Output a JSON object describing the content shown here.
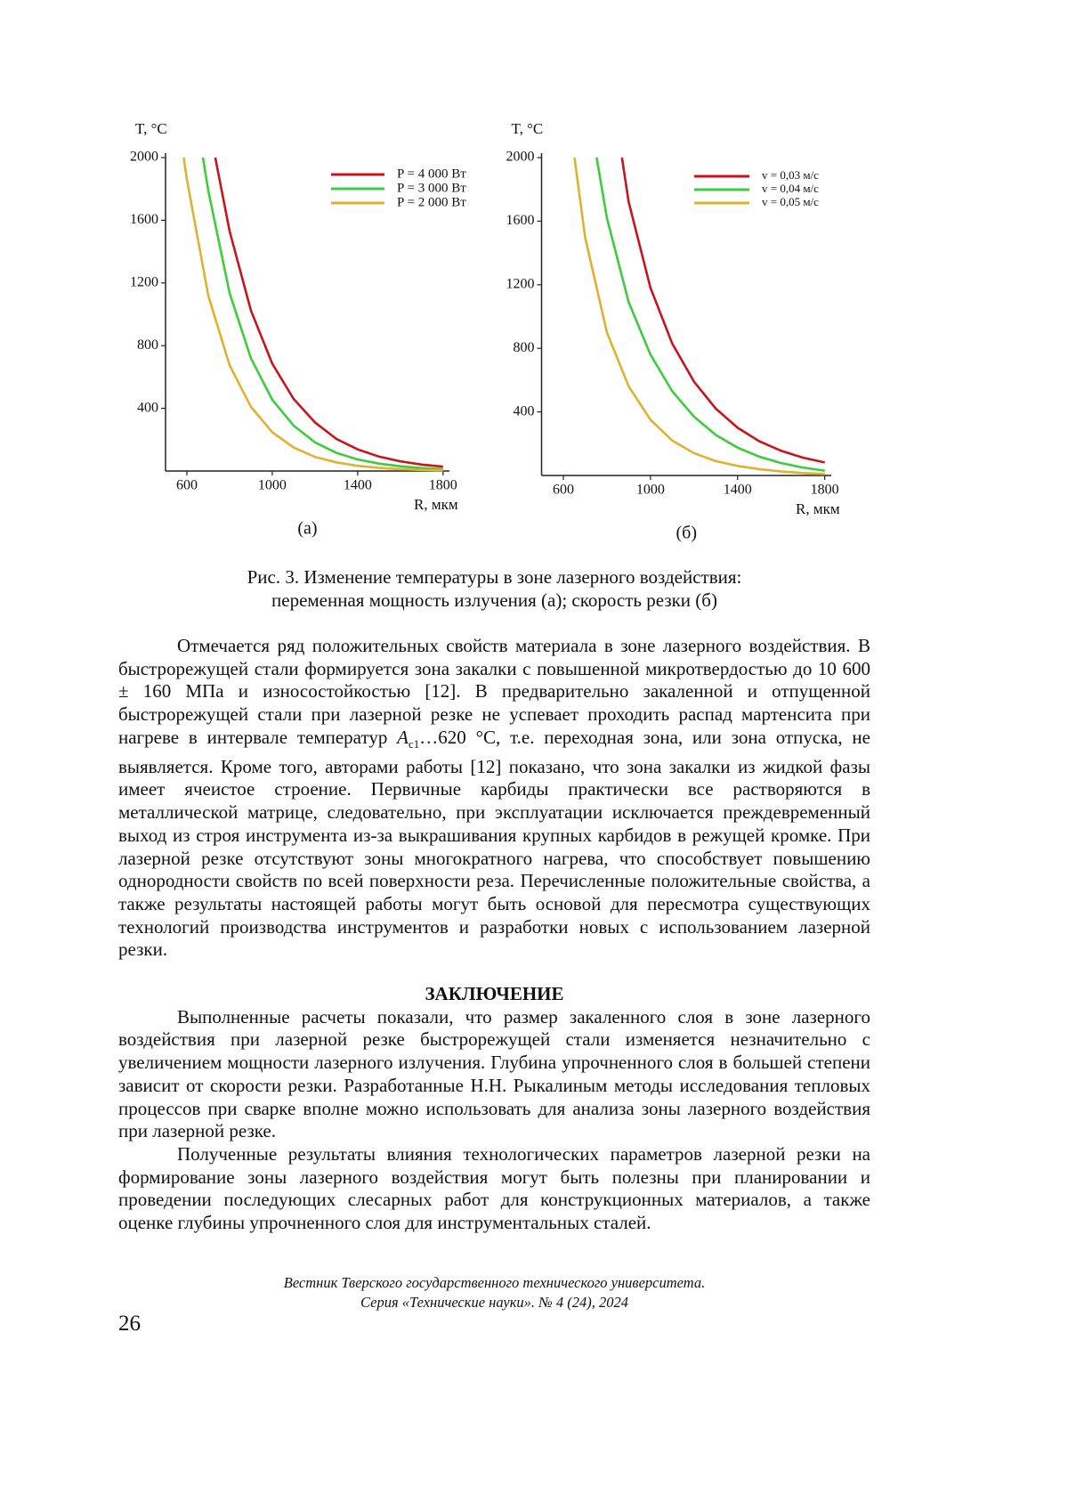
{
  "chart_data": [
    {
      "type": "line",
      "panel_label": "(а)",
      "ylabel": "T, °C",
      "xlabel": "R, мкм",
      "xlim": [
        500,
        1830
      ],
      "ylim": [
        0,
        2000
      ],
      "xticks": [
        600,
        1000,
        1400,
        1800
      ],
      "yticks": [
        400,
        800,
        1200,
        1600,
        2000
      ],
      "legend": "upper right",
      "series": [
        {
          "name": "P = 4 000 Вт",
          "color": "#c8141e",
          "x": [
            733,
            800,
            900,
            1000,
            1100,
            1200,
            1300,
            1400,
            1500,
            1600,
            1700,
            1800
          ],
          "values": [
            2000,
            1530,
            1025,
            685,
            460,
            310,
            205,
            138,
            92,
            62,
            41,
            28
          ]
        },
        {
          "name": "P = 3 000 Вт",
          "color": "#3ccc3c",
          "x": [
            675,
            700,
            800,
            900,
            1000,
            1100,
            1200,
            1300,
            1400,
            1500,
            1600,
            1700,
            1800
          ],
          "values": [
            2000,
            1790,
            1135,
            720,
            455,
            290,
            183,
            116,
            74,
            47,
            30,
            19,
            12
          ]
        },
        {
          "name": "P = 2 000 Вт",
          "color": "#e0b030",
          "x": [
            585,
            600,
            700,
            800,
            900,
            1000,
            1100,
            1200,
            1300,
            1400,
            1500,
            1600,
            1700,
            1800
          ],
          "values": [
            2000,
            1860,
            1120,
            675,
            410,
            248,
            150,
            90,
            55,
            33,
            20,
            12,
            7,
            4
          ]
        }
      ]
    },
    {
      "type": "line",
      "panel_label": "(б)",
      "ylabel": "T, °C",
      "xlabel": "R, мкм",
      "xlim": [
        500,
        1830
      ],
      "ylim": [
        0,
        2000
      ],
      "xticks": [
        600,
        1000,
        1400,
        1800
      ],
      "yticks": [
        400,
        800,
        1200,
        1600,
        2000
      ],
      "legend": "upper right",
      "series": [
        {
          "name": "v = 0,03 м/с",
          "color": "#c8141e",
          "x": [
            869,
            900,
            1000,
            1100,
            1200,
            1300,
            1400,
            1500,
            1600,
            1700,
            1800
          ],
          "values": [
            2000,
            1720,
            1180,
            830,
            590,
            420,
            300,
            215,
            155,
            112,
            82
          ]
        },
        {
          "name": "v = 0,04 м/с",
          "color": "#3ccc3c",
          "x": [
            753,
            800,
            900,
            1000,
            1100,
            1200,
            1300,
            1400,
            1500,
            1600,
            1700,
            1800
          ],
          "values": [
            2000,
            1620,
            1090,
            760,
            530,
            370,
            255,
            175,
            118,
            78,
            50,
            30
          ]
        },
        {
          "name": "v = 0,05 м/с",
          "color": "#e0b030",
          "x": [
            651,
            700,
            800,
            900,
            1000,
            1100,
            1200,
            1300,
            1400,
            1500,
            1600,
            1700,
            1800
          ],
          "values": [
            2000,
            1500,
            900,
            560,
            350,
            220,
            140,
            90,
            60,
            40,
            25,
            15,
            9
          ]
        }
      ]
    }
  ],
  "figure_caption": [
    "Рис. 3. Изменение температуры в зоне лазерного воздействия:",
    "переменная мощность излучения (а); скорость резки (б)"
  ],
  "body": {
    "paragraph_1": {
      "before": "Отмечается ряд положительных свойств материала в зоне лазерного воздействия. В быстрорежущей стали формируется зона закалки с повышенной микротвердостью до 10 600 ± 160 МПа и износостойкостью [12]. В предварительно закаленной и отпущенной быстрорежущей стали при лазерной резке не успевает проходить распад мартенсита при нагреве в интервале температур ",
      "symbol": "A",
      "subscript": "c1",
      "after": "…620 °C, т.е. переходная зона, или зона отпуска, не выявляется. Кроме того, авторами работы [12] показано, что зона закалки из жидкой фазы имеет ячеистое строение. Первичные карбиды практически все растворяются в металлической матрице, следовательно, при эксплуатации исключается преждевременный выход из строя инструмента из-за выкрашивания крупных карбидов в режущей кромке. При лазерной резке отсутствуют зоны многократного нагрева, что способствует повышению однородности свойств по всей поверхности реза. Перечисленные положительные свойства, а также результаты настоящей работы могут быть основой для пересмотра существующих технологий производства инструментов и разработки новых с использованием лазерной резки."
    },
    "heading": "ЗАКЛЮЧЕНИЕ",
    "paragraph_2": "Выполненные расчеты показали, что размер закаленного слоя в зоне лазерного воздействия при лазерной резке быстрорежущей стали изменяется незначительно с увеличением мощности лазерного излучения. Глубина упрочненного слоя в большей степени зависит от скорости резки. Разработанные Н.Н. Рыкалиным методы исследования тепловых процессов при сварке вполне можно использовать для анализа зоны лазерного воздействия при лазерной резке.",
    "paragraph_3": "Полученные результаты влияния технологических параметров лазерной резки на формирование зоны лазерного воздействия могут быть полезны при планировании и проведении последующих слесарных работ для конструкционных материалов, а также оценке глубины упрочненного слоя для инструментальных сталей."
  },
  "footer": {
    "lines": [
      "Вестник Тверского государственного технического университета.",
      "Серия «Технические науки». № 4 (24), 2024"
    ],
    "page_number": "26"
  }
}
